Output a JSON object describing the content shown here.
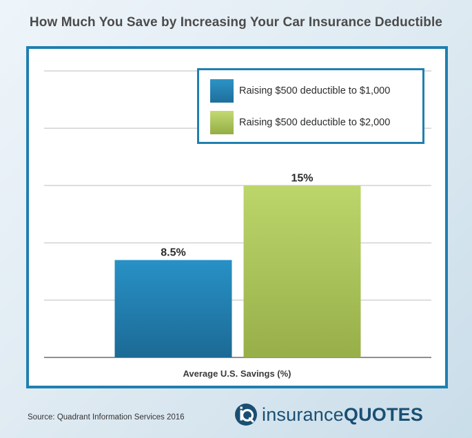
{
  "title": "How Much You Save by Increasing Your Car Insurance Deductible",
  "source": "Source: Quadrant Information Services 2016",
  "logo": {
    "part1": "insurance",
    "part2": "QUOTES",
    "icon": "iq-logo-icon"
  },
  "colors": {
    "border": "#1f7fb0",
    "series1": "#1f7fb0",
    "series2": "#b5cf5f",
    "title": "#4b4b4b",
    "logo": "#1a4f73"
  },
  "chart_data": {
    "type": "bar",
    "categories": [
      "Average U.S. Savings (%)"
    ],
    "xlabel": "Average U.S. Savings (%)",
    "ylabel": "",
    "ylim": [
      0,
      25
    ],
    "grid": true,
    "legend_position": "top-right",
    "series": [
      {
        "name": "Raising $500 deductible to $1,000",
        "values": [
          8.5
        ],
        "data_label": "8.5%",
        "color": "#1f7fb0"
      },
      {
        "name": "Raising $500 deductible to $2,000",
        "values": [
          15
        ],
        "data_label": "15%",
        "color": "#b5cf5f"
      }
    ]
  }
}
